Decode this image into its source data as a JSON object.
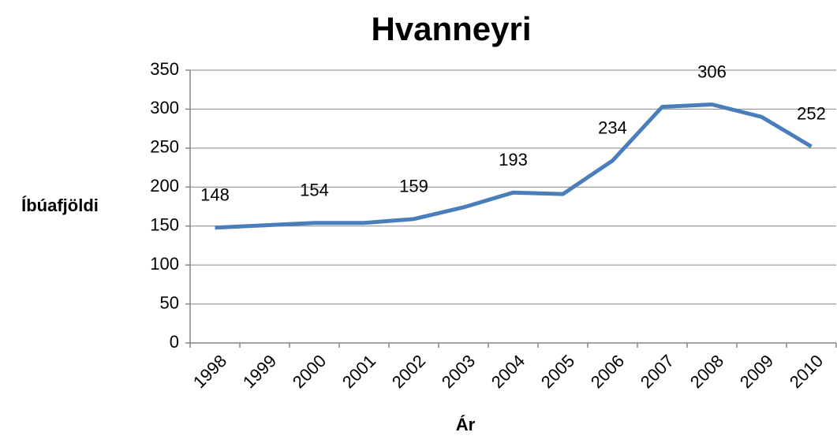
{
  "chart_data": {
    "type": "line",
    "title": "Hvanneyri",
    "xlabel": "Ár",
    "ylabel": "Íbúafjöldi",
    "categories": [
      "1998",
      "1999",
      "2000",
      "2001",
      "2002",
      "2003",
      "2004",
      "2005",
      "2006",
      "2007",
      "2008",
      "2009",
      "2010"
    ],
    "values": [
      148,
      151,
      154,
      154,
      159,
      174,
      193,
      191,
      234,
      303,
      306,
      290,
      252
    ],
    "value_labels": [
      "148",
      null,
      "154",
      null,
      "159",
      null,
      "193",
      null,
      "234",
      null,
      "306",
      null,
      "252"
    ],
    "color": "#4a7ebb",
    "ylim": [
      0,
      350
    ],
    "yticks": [
      0,
      50,
      100,
      150,
      200,
      250,
      300,
      350
    ],
    "grid": true
  }
}
